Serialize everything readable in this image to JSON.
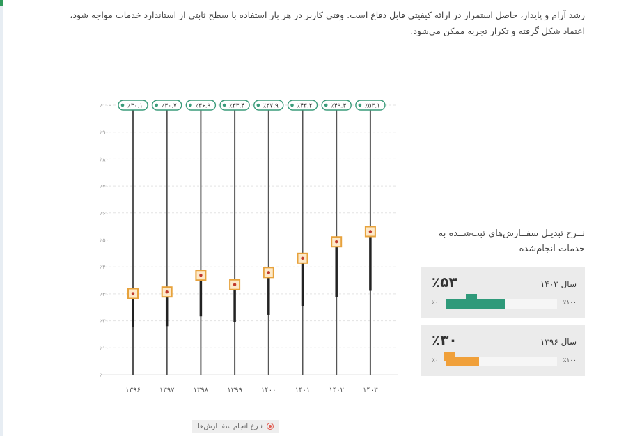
{
  "intro": "رشد آرام و پایدار، حاصل استمرار در ارائه کیفیتی قابل دفاع است. وقتی کاربر در هر بار استفاده با سطح ثابتی از استاندارد خدمات مواجه شود، اعتماد شکل گرفته و تکرار تجربه ممکن می‌شود.",
  "legend": {
    "label": "نـرخ انجام سفــارش‌ها",
    "color": "#e05a4f"
  },
  "panel": {
    "title": "نــرخ تبدیـل سفــارش‌های ثبت‌شــده به خدمات انجام‌شده",
    "cards": [
      {
        "year_label": "سال ۱۴۰۳",
        "percent_label": "٪۵۳",
        "value": 53,
        "color": "#2f9a7a",
        "min_label": "٪۰",
        "max_label": "٪۱۰۰"
      },
      {
        "year_label": "سال ۱۳۹۶",
        "percent_label": "٪۳۰",
        "value": 30,
        "color": "#f0a03a",
        "min_label": "٪۰",
        "max_label": "٪۱۰۰"
      }
    ]
  },
  "chart_data": {
    "type": "line",
    "categories": [
      "۱۳۹۶",
      "۱۳۹۷",
      "۱۳۹۸",
      "۱۳۹۹",
      "۱۴۰۰",
      "۱۴۰۱",
      "۱۴۰۲",
      "۱۴۰۳"
    ],
    "series": [
      {
        "name": "نـرخ انجام سفــارش‌ها",
        "values": [
          30.1,
          30.7,
          36.9,
          33.4,
          37.9,
          43.2,
          49.3,
          53.1
        ],
        "labels": [
          "٪۳۰.۱",
          "٪۳۰.۷",
          "٪۳۶.۹",
          "٪۳۳.۴",
          "٪۳۷.۹",
          "٪۴۳.۲",
          "٪۴۹.۳",
          "٪۵۳.۱"
        ]
      }
    ],
    "ylim": [
      0,
      100
    ],
    "yticks": [
      0,
      10,
      20,
      30,
      40,
      50,
      60,
      70,
      80,
      90,
      100
    ],
    "ytick_labels": [
      "٪۰",
      "٪۱۰",
      "٪۲۰",
      "٪۳۰",
      "٪۴۰",
      "٪۵۰",
      "٪۶۰",
      "٪۷۰",
      "٪۸۰",
      "٪۹۰",
      "٪۱۰۰"
    ],
    "colors": {
      "stem": "#555555",
      "thick": "#222222",
      "marker": "#e7a23c",
      "badge": "#3a9b7a",
      "grid": "#e3e3e3"
    },
    "grid": true
  }
}
